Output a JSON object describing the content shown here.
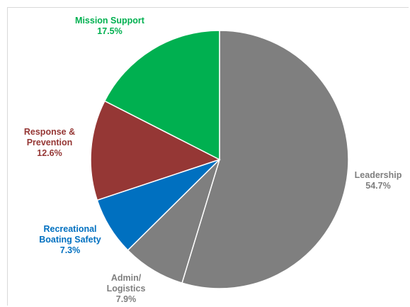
{
  "chart_data": {
    "type": "pie",
    "title": "",
    "start_angle_deg": 0,
    "direction": "clockwise",
    "slices": [
      {
        "label": "Leadership",
        "value": 54.7,
        "value_text": "54.7%",
        "color": "#7f7f7f",
        "label_color": "#7f7f7f"
      },
      {
        "label": "Admin/\nLogistics",
        "value": 7.9,
        "value_text": "7.9%",
        "color": "#7f7f7f",
        "label_color": "#7f7f7f"
      },
      {
        "label": "Recreational\nBoating Safety",
        "value": 7.3,
        "value_text": "7.3%",
        "color": "#0070c0",
        "label_color": "#0070c0"
      },
      {
        "label": "Response &\nPrevention",
        "value": 12.6,
        "value_text": "12.6%",
        "color": "#953735",
        "label_color": "#953735"
      },
      {
        "label": "Mission Support",
        "value": 17.5,
        "value_text": "17.5%",
        "color": "#00b050",
        "label_color": "#00b050"
      }
    ],
    "legend": "none",
    "slice_border_color": "#ffffff"
  }
}
